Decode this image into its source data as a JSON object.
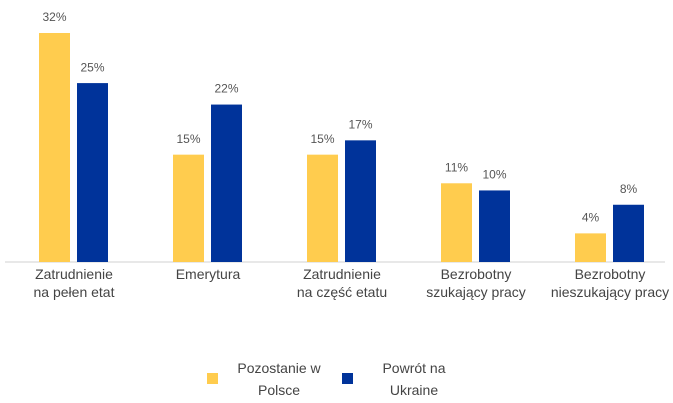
{
  "chart_data": {
    "type": "bar",
    "categories": [
      "Zatrudnienie na pełen etat",
      "Emerytura",
      "Zatrudnienie na część etatu",
      "Bezrobotny szukający pracy",
      "Bezrobotny nieszukający pracy"
    ],
    "series": [
      {
        "name": "Pozostanie w Polsce",
        "color": "#ffcc4e",
        "values": [
          32,
          15,
          15,
          11,
          4
        ],
        "value_labels": [
          "32%",
          "15%",
          "15%",
          "11%",
          "4%"
        ]
      },
      {
        "name": "Powrót na Ukraine",
        "color": "#00339a",
        "values": [
          25,
          22,
          17,
          10,
          8
        ],
        "value_labels": [
          "25%",
          "22%",
          "17%",
          "10%",
          "8%"
        ]
      }
    ],
    "ylim": [
      0,
      32
    ]
  }
}
